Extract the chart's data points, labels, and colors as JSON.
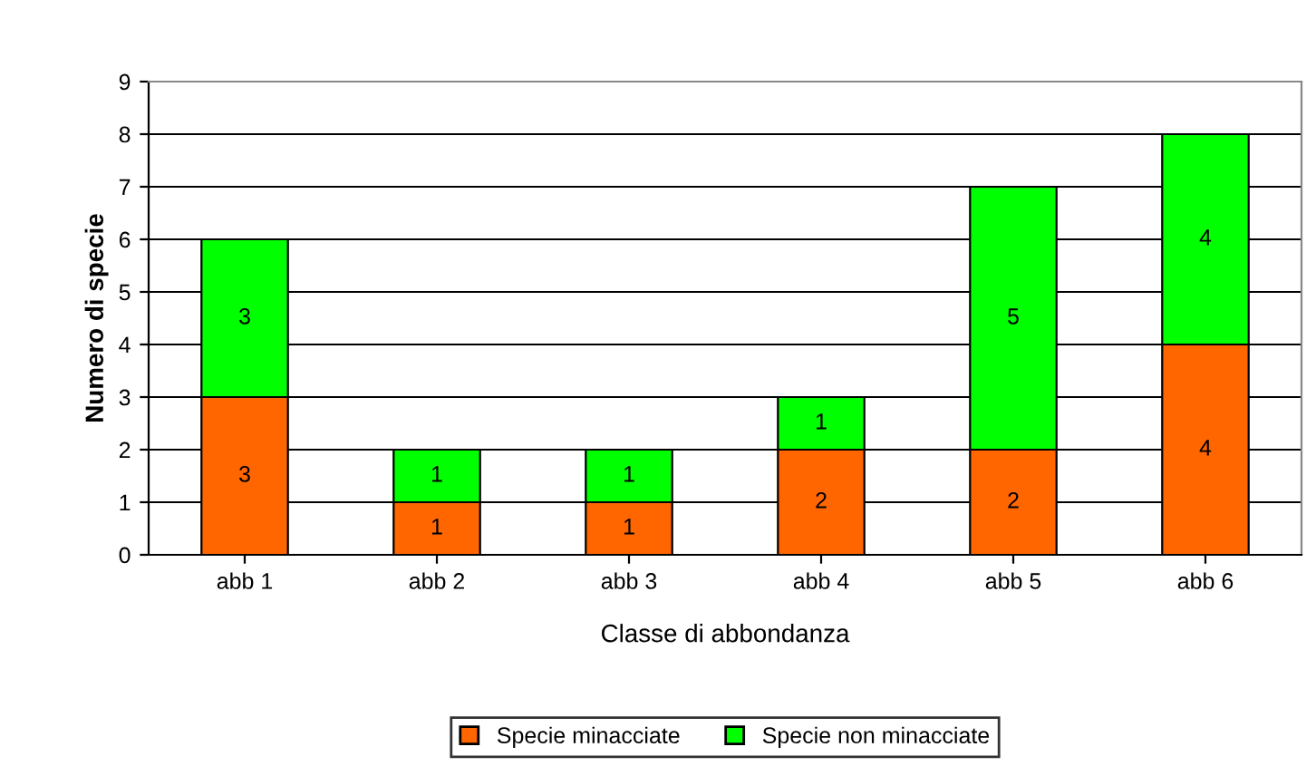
{
  "chart_data": {
    "type": "bar",
    "stacked": true,
    "xlabel": "Classe di abbondanza",
    "ylabel": "Numero di specie",
    "categories": [
      "abb 1",
      "abb 2",
      "abb 3",
      "abb 4",
      "abb 5",
      "abb 6"
    ],
    "series": [
      {
        "name": "Specie minacciate",
        "color": "#ff6600",
        "values": [
          3,
          1,
          1,
          2,
          2,
          4
        ]
      },
      {
        "name": "Specie non minacciate",
        "color": "#00ff00",
        "values": [
          3,
          1,
          1,
          1,
          5,
          4
        ]
      }
    ],
    "ylim": [
      0,
      9
    ],
    "yticks": [
      0,
      1,
      2,
      3,
      4,
      5,
      6,
      7,
      8,
      9
    ],
    "grid": "y",
    "legend": "bottom",
    "data_labels": true
  }
}
